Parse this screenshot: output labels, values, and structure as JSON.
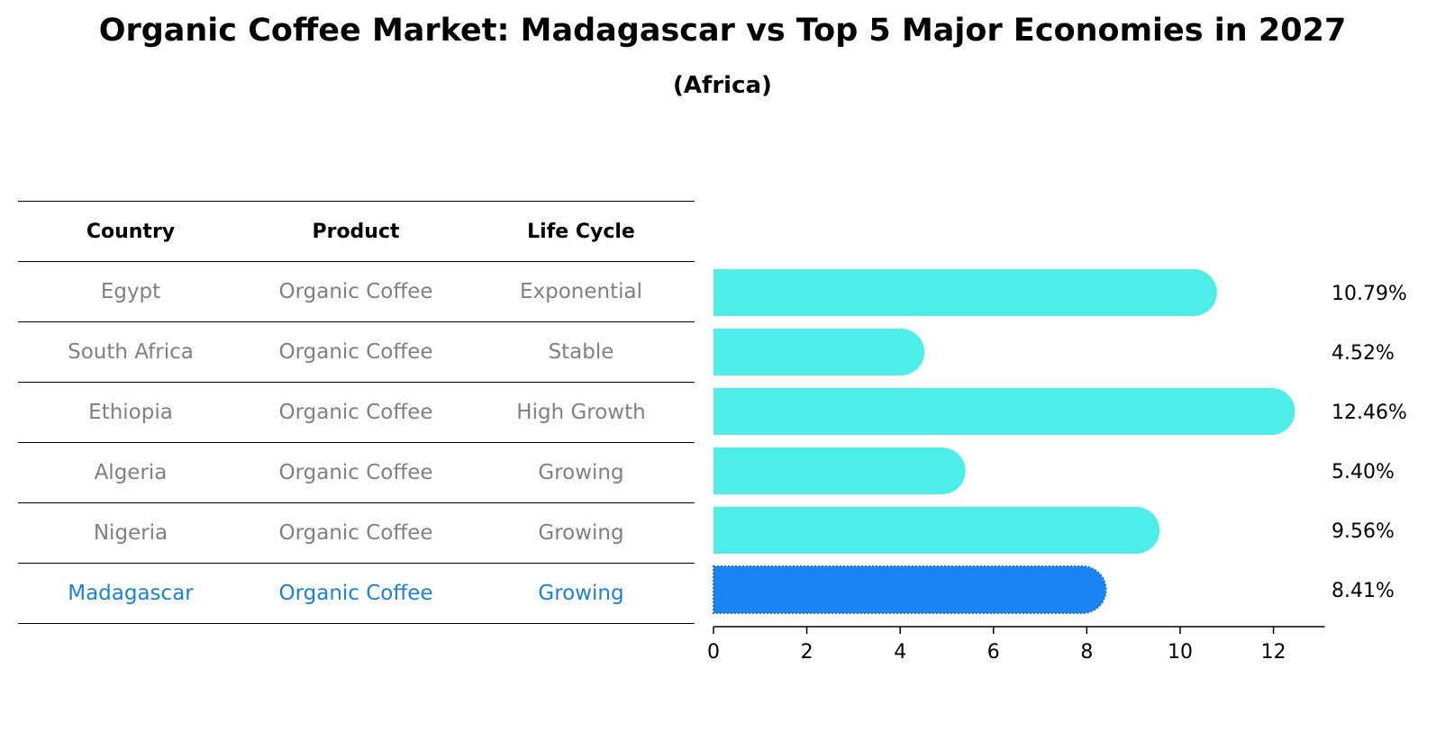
{
  "title": "Organic Coffee Market: Madagascar vs Top 5 Major Economies in 2027",
  "subtitle": "(Africa)",
  "table": {
    "headers": [
      "Country",
      "Product",
      "Life Cycle"
    ],
    "rows": [
      [
        "Egypt",
        "Organic Coffee",
        "Exponential"
      ],
      [
        "South Africa",
        "Organic Coffee",
        "Stable"
      ],
      [
        "Ethiopia",
        "Organic Coffee",
        "High Growth"
      ],
      [
        "Algeria",
        "Organic Coffee",
        "Growing"
      ],
      [
        "Nigeria",
        "Organic Coffee",
        "Growing"
      ],
      [
        "Madagascar",
        "Organic Coffee",
        "Growing"
      ]
    ]
  },
  "colors": {
    "bar": "#4deee9",
    "highlight": "#1a84f5",
    "highlight_text": "#1a81d6",
    "muted_text": "#808080"
  },
  "chart_data": {
    "type": "bar",
    "orientation": "horizontal",
    "title": "Organic Coffee Market: Madagascar vs Top 5 Major Economies in 2027",
    "subtitle": "(Africa)",
    "categories": [
      "Egypt",
      "South Africa",
      "Ethiopia",
      "Algeria",
      "Nigeria",
      "Madagascar"
    ],
    "values": [
      10.79,
      4.52,
      12.46,
      5.4,
      9.56,
      8.41
    ],
    "value_labels": [
      "10.79%",
      "4.52%",
      "12.46%",
      "5.40%",
      "9.56%",
      "8.41%"
    ],
    "highlight": "Madagascar",
    "xlim": [
      0,
      13.1
    ],
    "xticks": [
      0,
      2,
      4,
      6,
      8,
      10,
      12
    ],
    "xlabel": "",
    "ylabel": ""
  }
}
